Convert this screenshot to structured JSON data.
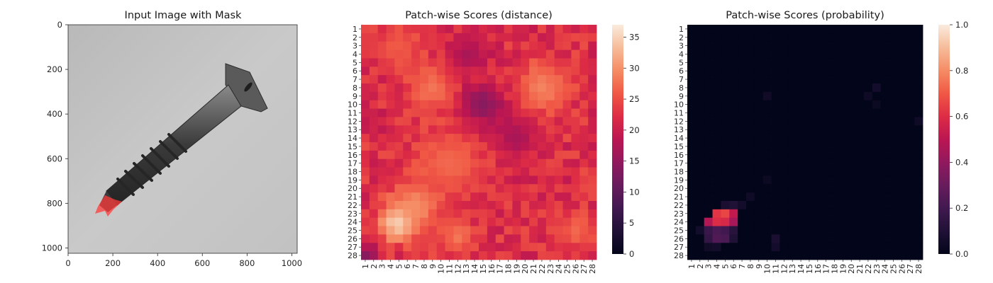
{
  "panels": {
    "image": {
      "title": "Input Image with Mask",
      "x_ticks": [
        "0",
        "200",
        "400",
        "600",
        "800",
        "1000"
      ],
      "y_ticks": [
        "0",
        "200",
        "400",
        "600",
        "800",
        "1000"
      ],
      "x_range": [
        0,
        1024
      ],
      "y_range": [
        0,
        1024
      ]
    },
    "distance": {
      "title": "Patch-wise Scores (distance)",
      "colorbar_ticks": [
        "0",
        "5",
        "10",
        "15",
        "20",
        "25",
        "30",
        "35"
      ],
      "colorbar_range": [
        0,
        37
      ]
    },
    "probability": {
      "title": "Patch-wise Scores (probability)",
      "colorbar_ticks": [
        "0.0",
        "0.2",
        "0.4",
        "0.6",
        "0.8",
        "1.0"
      ],
      "colorbar_range": [
        0,
        1
      ]
    }
  },
  "heatmap_labels": [
    "1",
    "2",
    "3",
    "4",
    "5",
    "6",
    "7",
    "8",
    "9",
    "10",
    "11",
    "12",
    "13",
    "14",
    "15",
    "16",
    "17",
    "18",
    "19",
    "20",
    "21",
    "22",
    "23",
    "24",
    "25",
    "26",
    "27",
    "28"
  ],
  "chart_data": [
    {
      "type": "image",
      "title": "Input Image with Mask",
      "xlim": [
        0,
        1024
      ],
      "ylim": [
        1024,
        0
      ],
      "description_of_content": "grayscale screw with red anomaly mask at tip",
      "mask_color": "#ff3b3b"
    },
    {
      "type": "heatmap",
      "title": "Patch-wise Scores (distance)",
      "colormap": "rocket",
      "vmin": 0,
      "vmax": 37,
      "rows": 28,
      "cols": 28,
      "base_value": 22,
      "hotspots": [
        {
          "row": 24,
          "col": 5,
          "value": 37,
          "radius": 1.6
        },
        {
          "row": 22,
          "col": 7,
          "value": 30,
          "radius": 2.0
        },
        {
          "row": 8,
          "col": 9,
          "value": 28,
          "radius": 2.0
        },
        {
          "row": 8,
          "col": 22,
          "value": 29,
          "radius": 2.2
        },
        {
          "row": 17,
          "col": 11,
          "value": 27,
          "radius": 3.0
        },
        {
          "row": 26,
          "col": 12,
          "value": 28,
          "radius": 1.4
        },
        {
          "row": 25,
          "col": 26,
          "value": 27,
          "radius": 1.5
        },
        {
          "row": 3,
          "col": 5,
          "value": 26,
          "radius": 2.0
        },
        {
          "row": 10,
          "col": 15,
          "value": 14,
          "radius": 1.8
        },
        {
          "row": 4,
          "col": 13,
          "value": 17,
          "radius": 1.6
        },
        {
          "row": 14,
          "col": 19,
          "value": 17,
          "radius": 1.8
        },
        {
          "row": 28,
          "col": 1,
          "value": 14,
          "radius": 1.0
        }
      ]
    },
    {
      "type": "heatmap",
      "title": "Patch-wise Scores (probability)",
      "colormap": "rocket",
      "vmin": 0,
      "vmax": 1,
      "rows": 28,
      "cols": 28,
      "base_value": 0.0,
      "cells": [
        {
          "row": 23,
          "col": 4,
          "value": 0.62
        },
        {
          "row": 23,
          "col": 5,
          "value": 0.66
        },
        {
          "row": 23,
          "col": 6,
          "value": 0.52
        },
        {
          "row": 24,
          "col": 3,
          "value": 0.48
        },
        {
          "row": 24,
          "col": 4,
          "value": 0.6
        },
        {
          "row": 24,
          "col": 5,
          "value": 0.58
        },
        {
          "row": 24,
          "col": 6,
          "value": 0.45
        },
        {
          "row": 25,
          "col": 3,
          "value": 0.18
        },
        {
          "row": 25,
          "col": 4,
          "value": 0.22
        },
        {
          "row": 25,
          "col": 5,
          "value": 0.2
        },
        {
          "row": 25,
          "col": 6,
          "value": 0.12
        },
        {
          "row": 26,
          "col": 3,
          "value": 0.16
        },
        {
          "row": 26,
          "col": 4,
          "value": 0.24
        },
        {
          "row": 26,
          "col": 5,
          "value": 0.22
        },
        {
          "row": 26,
          "col": 6,
          "value": 0.1
        },
        {
          "row": 22,
          "col": 5,
          "value": 0.08
        },
        {
          "row": 22,
          "col": 6,
          "value": 0.1
        },
        {
          "row": 22,
          "col": 7,
          "value": 0.06
        },
        {
          "row": 27,
          "col": 3,
          "value": 0.05
        },
        {
          "row": 27,
          "col": 4,
          "value": 0.06
        },
        {
          "row": 25,
          "col": 2,
          "value": 0.06
        },
        {
          "row": 26,
          "col": 11,
          "value": 0.08
        },
        {
          "row": 27,
          "col": 11,
          "value": 0.06
        },
        {
          "row": 9,
          "col": 10,
          "value": 0.05
        },
        {
          "row": 8,
          "col": 23,
          "value": 0.06
        },
        {
          "row": 9,
          "col": 22,
          "value": 0.04
        },
        {
          "row": 12,
          "col": 28,
          "value": 0.04
        },
        {
          "row": 21,
          "col": 8,
          "value": 0.04
        },
        {
          "row": 19,
          "col": 10,
          "value": 0.03
        },
        {
          "row": 10,
          "col": 23,
          "value": 0.03
        }
      ]
    }
  ]
}
